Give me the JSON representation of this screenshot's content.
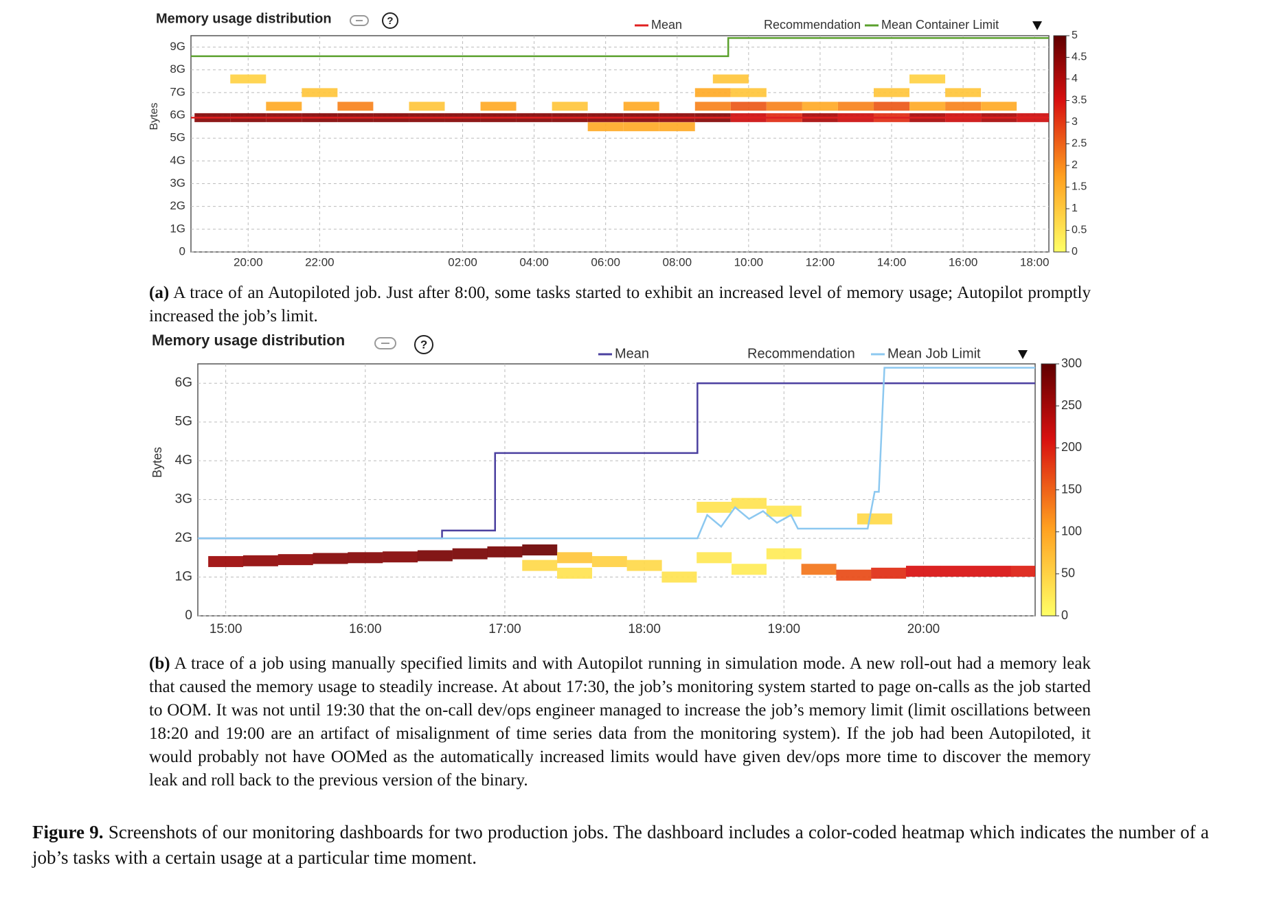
{
  "chart_data": [
    {
      "type": "heatmap",
      "title": "Memory usage distribution",
      "ylabel": "Bytes",
      "xlim": [
        18.4,
        42.4
      ],
      "xticks": [
        {
          "value": 20,
          "label": "20:00"
        },
        {
          "value": 22,
          "label": "22:00"
        },
        {
          "value": 26,
          "label": "02:00"
        },
        {
          "value": 28,
          "label": "04:00"
        },
        {
          "value": 30,
          "label": "06:00"
        },
        {
          "value": 32,
          "label": "08:00"
        },
        {
          "value": 34,
          "label": "10:00"
        },
        {
          "value": 36,
          "label": "12:00"
        },
        {
          "value": 38,
          "label": "14:00"
        },
        {
          "value": 40,
          "label": "16:00"
        },
        {
          "value": 42,
          "label": "18:00"
        }
      ],
      "ylim": [
        0,
        9.5
      ],
      "yticks": [
        0,
        {
          "value": 1,
          "label": "1G"
        },
        {
          "value": 2,
          "label": "2G"
        },
        {
          "value": 3,
          "label": "3G"
        },
        {
          "value": 4,
          "label": "4G"
        },
        {
          "value": 5,
          "label": "5G"
        },
        {
          "value": 6,
          "label": "6G"
        },
        {
          "value": 7,
          "label": "7G"
        },
        {
          "value": 8,
          "label": "8G"
        },
        {
          "value": 9,
          "label": "9G"
        }
      ],
      "grid": true,
      "legend_inactive": "Recommendation",
      "series": [
        {
          "name": "Mean",
          "color": "#e02020",
          "x": [
            18.4,
            42.4
          ],
          "values": [
            5.9,
            5.9
          ]
        },
        {
          "name": "Mean Container Limit",
          "color": "#5aa02c",
          "x": [
            18.4,
            33.43,
            33.43,
            42.4
          ],
          "values": [
            8.6,
            8.6,
            9.4,
            9.4
          ]
        }
      ],
      "colormap": [
        "#ffff66",
        "#ffa020",
        "#d81010",
        "#600000"
      ],
      "clim": [
        0,
        5
      ],
      "clticks": [
        0,
        0.5,
        1,
        1.5,
        2,
        2.5,
        3,
        3.5,
        4,
        4.5,
        5
      ],
      "heatmap": {
        "x": [
          19,
          20,
          21,
          22,
          23,
          24,
          25,
          26,
          27,
          28,
          29,
          30,
          31,
          32,
          33,
          34,
          35,
          36,
          37,
          38,
          39,
          40,
          41,
          42,
          30,
          31,
          32,
          21,
          23,
          25,
          27,
          29,
          31,
          33,
          34,
          35,
          36,
          37,
          38,
          39,
          40,
          41,
          22,
          33,
          34,
          38,
          40,
          20,
          33.5,
          39
        ],
        "y": [
          5.9,
          5.9,
          5.9,
          5.9,
          5.9,
          5.9,
          5.9,
          5.9,
          5.9,
          5.9,
          5.9,
          5.9,
          5.9,
          5.9,
          5.9,
          5.9,
          5.9,
          5.9,
          5.9,
          5.9,
          5.9,
          5.9,
          5.9,
          5.9,
          5.5,
          5.5,
          5.5,
          6.4,
          6.4,
          6.4,
          6.4,
          6.4,
          6.4,
          6.4,
          6.4,
          6.4,
          6.4,
          6.4,
          6.4,
          6.4,
          6.4,
          6.4,
          7.0,
          7.0,
          7.0,
          7.0,
          7.0,
          7.6,
          7.6,
          7.6
        ],
        "values": [
          4.5,
          4.5,
          4.4,
          4.5,
          4.5,
          4.5,
          4.5,
          4.5,
          4.5,
          4.5,
          4.5,
          4.5,
          4.5,
          4.4,
          4.5,
          3.5,
          3,
          4,
          3.5,
          3,
          4,
          3.5,
          4,
          3.5,
          1.5,
          1.5,
          1.5,
          1.5,
          2,
          1,
          1.5,
          1,
          1.5,
          2,
          2.5,
          2,
          1.5,
          2,
          2.5,
          1.5,
          2,
          1.5,
          1,
          1.5,
          1,
          1,
          1,
          0.8,
          1,
          0.8
        ]
      }
    },
    {
      "type": "heatmap",
      "title": "Memory usage distribution",
      "ylabel": "Bytes",
      "xlim": [
        14.8,
        20.8
      ],
      "xticks": [
        {
          "value": 15,
          "label": "15:00"
        },
        {
          "value": 16,
          "label": "16:00"
        },
        {
          "value": 17,
          "label": "17:00"
        },
        {
          "value": 18,
          "label": "18:00"
        },
        {
          "value": 19,
          "label": "19:00"
        },
        {
          "value": 20,
          "label": "20:00"
        }
      ],
      "ylim": [
        0,
        6.5
      ],
      "yticks": [
        0,
        {
          "value": 1,
          "label": "1G"
        },
        {
          "value": 2,
          "label": "2G"
        },
        {
          "value": 3,
          "label": "3G"
        },
        {
          "value": 4,
          "label": "4G"
        },
        {
          "value": 5,
          "label": "5G"
        },
        {
          "value": 6,
          "label": "6G"
        }
      ],
      "grid": true,
      "legend_inactive": "Recommendation",
      "series": [
        {
          "name": "Mean",
          "color": "#4a3f9f",
          "x": [
            14.8,
            16.55,
            16.55,
            16.93,
            16.93,
            18.38,
            18.38,
            20.8
          ],
          "values": [
            2.0,
            2.0,
            2.2,
            2.2,
            4.2,
            4.2,
            6.0,
            6.0
          ]
        },
        {
          "name": "Mean Job Limit",
          "color": "#8cc8f0",
          "x": [
            14.8,
            18.38,
            18.45,
            18.55,
            18.65,
            18.75,
            18.85,
            18.95,
            19.05,
            19.1,
            19.6,
            19.65,
            19.68,
            19.72,
            20.8
          ],
          "values": [
            2.0,
            2.0,
            2.6,
            2.3,
            2.8,
            2.5,
            2.7,
            2.4,
            2.6,
            2.25,
            2.25,
            3.2,
            3.2,
            6.4,
            6.4
          ]
        }
      ],
      "colormap": [
        "#ffff66",
        "#ffa020",
        "#d81010",
        "#600000"
      ],
      "clim": [
        0,
        300
      ],
      "clticks": [
        0,
        50,
        100,
        150,
        200,
        250,
        300
      ],
      "heatmap": {
        "x": [
          15,
          15.25,
          15.5,
          15.75,
          16,
          16.25,
          16.5,
          16.75,
          17,
          17.25,
          17.5,
          17.75,
          18,
          18.25,
          17.25,
          17.5,
          18.5,
          18.75,
          19,
          18.5,
          18.75,
          19,
          19.25,
          19.5,
          19.65,
          19.75,
          20,
          20.25,
          20.5,
          20.75
        ],
        "y": [
          1.4,
          1.42,
          1.45,
          1.48,
          1.5,
          1.52,
          1.55,
          1.6,
          1.65,
          1.7,
          1.5,
          1.4,
          1.3,
          1.0,
          1.3,
          1.1,
          2.8,
          2.9,
          2.7,
          1.5,
          1.2,
          1.6,
          1.2,
          1.05,
          2.5,
          1.1,
          1.15,
          1.15,
          1.15,
          1.15
        ],
        "values": [
          250,
          260,
          260,
          270,
          270,
          270,
          280,
          280,
          280,
          290,
          60,
          50,
          40,
          30,
          40,
          30,
          30,
          30,
          25,
          25,
          20,
          20,
          130,
          160,
          40,
          180,
          200,
          200,
          200,
          190
        ]
      }
    }
  ],
  "captions": {
    "a": {
      "label": "(a)",
      "text": "A trace of an Autopiloted job. Just after 8:00, some tasks started to exhibit an increased level of memory usage; Autopilot promptly increased the job’s limit."
    },
    "b": {
      "label": "(b)",
      "text": "A trace of a job using manually specified limits and with Autopilot running in simulation mode. A new roll-out had a memory leak that caused the memory usage to steadily increase. At about 17:30, the job’s monitoring system started to page on-calls as the job started to OOM. It was not until 19:30 that the on-call dev/ops engineer managed to increase the job’s memory limit (limit oscillations between 18:20 and 19:00 are an artifact of misalignment of time series data from the monitoring system). If the job had been Autopiloted, it would probably not have OOMed as the automatically increased limits would have given dev/ops more time to discover the memory leak and roll back to the previous version of the binary."
    },
    "figure": {
      "label": "Figure 9.",
      "text": "Screenshots of our monitoring dashboards for two production jobs. The dashboard includes a color-coded heatmap which indicates the number of a job’s tasks with a certain usage at a particular time moment."
    }
  }
}
